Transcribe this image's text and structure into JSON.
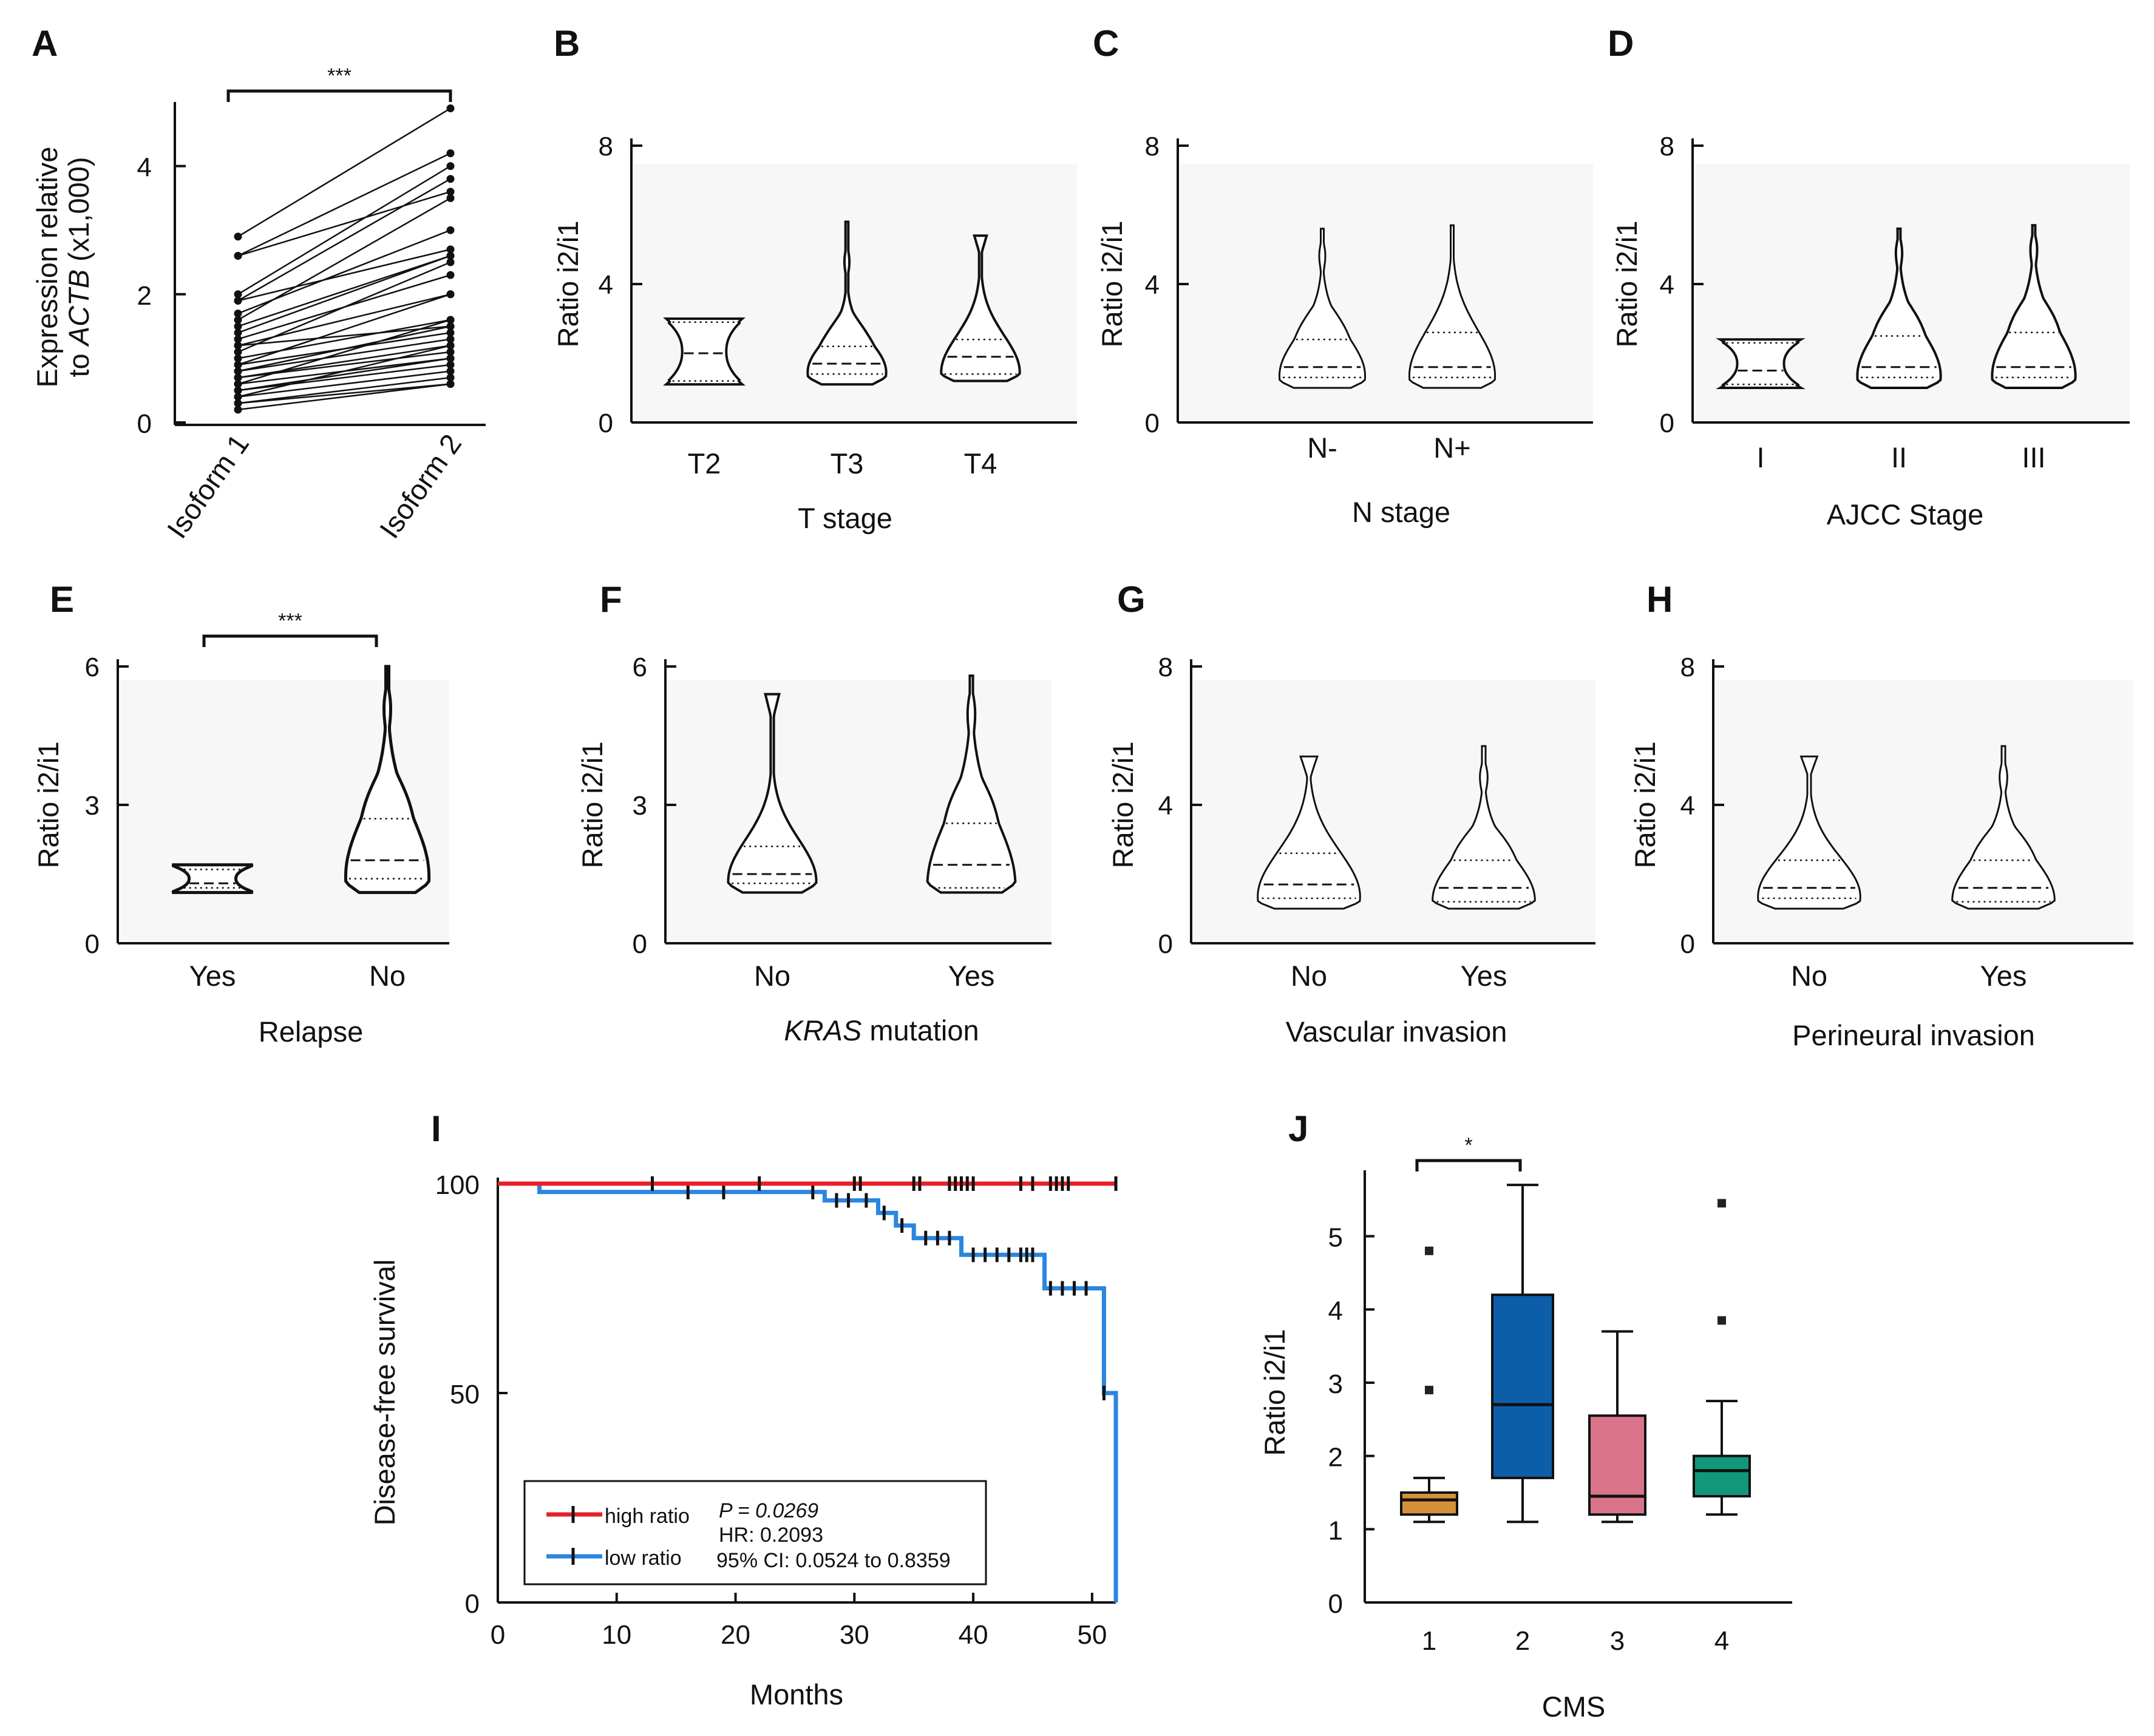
{
  "panel_letters": [
    "A",
    "B",
    "C",
    "D",
    "E",
    "F",
    "G",
    "H",
    "I",
    "J"
  ],
  "colors": {
    "high": "#e8202a",
    "low": "#2a86e0",
    "cms1": "#d4913c",
    "cms2": "#0d5ea8",
    "cms3": "#d9748a",
    "cms4": "#11977a",
    "ink": "#111111"
  },
  "chart_data": [
    {
      "panel": "A",
      "type": "line",
      "title": "",
      "xlabel": "",
      "ylabel_parts": [
        "Expression relative",
        "to ",
        "ACTB",
        " (x1,000)"
      ],
      "categories": [
        "Isoform 1",
        "Isoform 2"
      ],
      "ylim": [
        0,
        5
      ],
      "yticks": [
        "0",
        "2",
        "4"
      ],
      "significance": "***",
      "pairs": [
        [
          2.9,
          4.9
        ],
        [
          2.6,
          4.2
        ],
        [
          2.6,
          3.6
        ],
        [
          2.0,
          4.0
        ],
        [
          1.9,
          3.8
        ],
        [
          1.9,
          2.7
        ],
        [
          1.7,
          3.0
        ],
        [
          1.5,
          2.6
        ],
        [
          1.4,
          2.6
        ],
        [
          1.3,
          2.3
        ],
        [
          1.2,
          2.0
        ],
        [
          1.1,
          2.5
        ],
        [
          1.0,
          1.6
        ],
        [
          0.9,
          1.4
        ],
        [
          0.9,
          2.0
        ],
        [
          0.8,
          1.5
        ],
        [
          0.8,
          1.3
        ],
        [
          0.7,
          1.2
        ],
        [
          0.7,
          1.1
        ],
        [
          0.6,
          1.0
        ],
        [
          0.6,
          1.6
        ],
        [
          0.5,
          0.9
        ],
        [
          0.5,
          1.0
        ],
        [
          0.4,
          0.8
        ],
        [
          0.4,
          1.2
        ],
        [
          0.3,
          0.7
        ],
        [
          0.3,
          0.6
        ],
        [
          0.2,
          0.6
        ],
        [
          1.6,
          3.5
        ],
        [
          1.2,
          1.5
        ]
      ]
    },
    {
      "panel": "B",
      "type": "violin",
      "xlabel": "T stage",
      "ylabel": "Ratio i2/i1",
      "ylim": [
        0,
        8
      ],
      "yticks": [
        "0",
        "4",
        "8"
      ],
      "categories": [
        "T2",
        "T3",
        "T4"
      ],
      "groups": [
        {
          "min": 1.1,
          "max": 3.0,
          "q1": 1.2,
          "median": 2.0,
          "q3": 2.9,
          "shape": "flat"
        },
        {
          "min": 1.1,
          "max": 5.8,
          "q1": 1.4,
          "median": 1.7,
          "q3": 2.2,
          "shape": "bumpy"
        },
        {
          "min": 1.2,
          "max": 5.4,
          "q1": 1.4,
          "median": 1.9,
          "q3": 2.4,
          "shape": "funnel"
        }
      ]
    },
    {
      "panel": "C",
      "type": "violin",
      "xlabel": "N stage",
      "ylabel": "Ratio i2/i1",
      "ylim": [
        0,
        8
      ],
      "yticks": [
        "0",
        "4",
        "8"
      ],
      "categories": [
        "N-",
        "N+"
      ],
      "groups": [
        {
          "min": 1.0,
          "max": 5.6,
          "q1": 1.3,
          "median": 1.6,
          "q3": 2.4,
          "shape": "bumpy"
        },
        {
          "min": 1.0,
          "max": 5.7,
          "q1": 1.3,
          "median": 1.6,
          "q3": 2.6,
          "shape": "smooth"
        }
      ]
    },
    {
      "panel": "D",
      "type": "violin",
      "xlabel": "AJCC Stage",
      "ylabel": "Ratio i2/i1",
      "ylim": [
        0,
        8
      ],
      "yticks": [
        "0",
        "4",
        "8"
      ],
      "categories": [
        "I",
        "II",
        "III"
      ],
      "groups": [
        {
          "min": 1.0,
          "max": 2.4,
          "q1": 1.1,
          "median": 1.5,
          "q3": 2.3,
          "shape": "flat"
        },
        {
          "min": 1.0,
          "max": 5.6,
          "q1": 1.3,
          "median": 1.6,
          "q3": 2.5,
          "shape": "bumpy"
        },
        {
          "min": 1.0,
          "max": 5.7,
          "q1": 1.3,
          "median": 1.6,
          "q3": 2.6,
          "shape": "bumpy"
        }
      ]
    },
    {
      "panel": "E",
      "type": "violin",
      "xlabel": "Relapse",
      "ylabel": "Ratio i2/i1",
      "ylim": [
        0,
        6
      ],
      "yticks": [
        "0",
        "3",
        "6"
      ],
      "categories": [
        "Yes",
        "No"
      ],
      "significance": "***",
      "groups": [
        {
          "min": 1.1,
          "max": 1.7,
          "q1": 1.2,
          "median": 1.3,
          "q3": 1.6,
          "shape": "flat"
        },
        {
          "min": 1.1,
          "max": 6.0,
          "q1": 1.4,
          "median": 1.8,
          "q3": 2.7,
          "shape": "bumpy"
        }
      ]
    },
    {
      "panel": "F",
      "type": "violin",
      "xlabel_parts": [
        "KRAS",
        " mutation"
      ],
      "ylabel": "Ratio i2/i1",
      "ylim": [
        0,
        6
      ],
      "yticks": [
        "0",
        "3",
        "6"
      ],
      "categories": [
        "No",
        "Yes"
      ],
      "groups": [
        {
          "min": 1.1,
          "max": 5.4,
          "q1": 1.3,
          "median": 1.5,
          "q3": 2.1,
          "shape": "funnel"
        },
        {
          "min": 1.1,
          "max": 5.8,
          "q1": 1.2,
          "median": 1.7,
          "q3": 2.6,
          "shape": "bumpy"
        }
      ]
    },
    {
      "panel": "G",
      "type": "violin",
      "xlabel": "Vascular invasion",
      "ylabel": "Ratio i2/i1",
      "ylim": [
        0,
        8
      ],
      "yticks": [
        "0",
        "4",
        "8"
      ],
      "categories": [
        "No",
        "Yes"
      ],
      "groups": [
        {
          "min": 1.0,
          "max": 5.4,
          "q1": 1.3,
          "median": 1.7,
          "q3": 2.6,
          "shape": "funnel"
        },
        {
          "min": 1.0,
          "max": 5.7,
          "q1": 1.2,
          "median": 1.6,
          "q3": 2.4,
          "shape": "bumpy"
        }
      ]
    },
    {
      "panel": "H",
      "type": "violin",
      "xlabel": "Perineural invasion",
      "ylabel": "Ratio i2/i1",
      "ylim": [
        0,
        8
      ],
      "yticks": [
        "0",
        "4",
        "8"
      ],
      "categories": [
        "No",
        "Yes"
      ],
      "groups": [
        {
          "min": 1.0,
          "max": 5.4,
          "q1": 1.3,
          "median": 1.6,
          "q3": 2.4,
          "shape": "funnel"
        },
        {
          "min": 1.0,
          "max": 5.7,
          "q1": 1.2,
          "median": 1.6,
          "q3": 2.4,
          "shape": "bumpy"
        }
      ]
    },
    {
      "panel": "I",
      "type": "line",
      "subtype": "kaplan-meier",
      "xlabel": "Months",
      "ylabel": "Disease-free survival",
      "xlim": [
        0,
        52
      ],
      "ylim": [
        0,
        100
      ],
      "xticks": [
        "0",
        "10",
        "20",
        "30",
        "40",
        "50"
      ],
      "yticks": [
        "0",
        "50",
        "100"
      ],
      "series": [
        {
          "name": "high ratio",
          "steps": [
            [
              0,
              100
            ],
            [
              52,
              100
            ]
          ],
          "censor": [
            13,
            22,
            30,
            30.5,
            35,
            35.5,
            38,
            38.5,
            39,
            39.5,
            40,
            44,
            45,
            46.5,
            47,
            47.5,
            48,
            52
          ]
        },
        {
          "name": "low ratio",
          "steps": [
            [
              0,
              100
            ],
            [
              3.5,
              100
            ],
            [
              3.5,
              98
            ],
            [
              27.5,
              98
            ],
            [
              27.5,
              96
            ],
            [
              32,
              96
            ],
            [
              32,
              93
            ],
            [
              33.5,
              93
            ],
            [
              33.5,
              90
            ],
            [
              35,
              90
            ],
            [
              35,
              87
            ],
            [
              39,
              87
            ],
            [
              39,
              83
            ],
            [
              46,
              83
            ],
            [
              46,
              75
            ],
            [
              51,
              75
            ],
            [
              51,
              50
            ],
            [
              52,
              50
            ],
            [
              52,
              0
            ]
          ],
          "censor": [
            16,
            19,
            26.5,
            28.5,
            29.5,
            31,
            32.5,
            34,
            36,
            37,
            38,
            40,
            41,
            42,
            43,
            44,
            44.5,
            45,
            46.5,
            47.5,
            48.5,
            49.5,
            51
          ]
        }
      ],
      "legend": {
        "p_value": "P = 0.0269",
        "hr": "HR: 0.2093",
        "ci": "95% CI: 0.0524 to 0.8359",
        "position": "bottom-left"
      }
    },
    {
      "panel": "J",
      "type": "box",
      "xlabel": "CMS",
      "ylabel": "Ratio i2/i1",
      "ylim": [
        0,
        5.9
      ],
      "yticks": [
        "0",
        "1",
        "2",
        "3",
        "4",
        "5"
      ],
      "categories": [
        "1",
        "2",
        "3",
        "4"
      ],
      "significance": "*",
      "boxes": [
        {
          "whisker_low": 1.1,
          "q1": 1.2,
          "median": 1.4,
          "q3": 1.5,
          "whisker_high": 1.7,
          "outliers": [
            2.9,
            4.8
          ]
        },
        {
          "whisker_low": 1.1,
          "q1": 1.7,
          "median": 2.7,
          "q3": 4.2,
          "whisker_high": 5.7,
          "outliers": []
        },
        {
          "whisker_low": 1.1,
          "q1": 1.2,
          "median": 1.45,
          "q3": 2.55,
          "whisker_high": 3.7,
          "outliers": []
        },
        {
          "whisker_low": 1.2,
          "q1": 1.45,
          "median": 1.8,
          "q3": 2.0,
          "whisker_high": 2.75,
          "outliers": [
            3.85,
            5.45
          ]
        }
      ]
    }
  ]
}
